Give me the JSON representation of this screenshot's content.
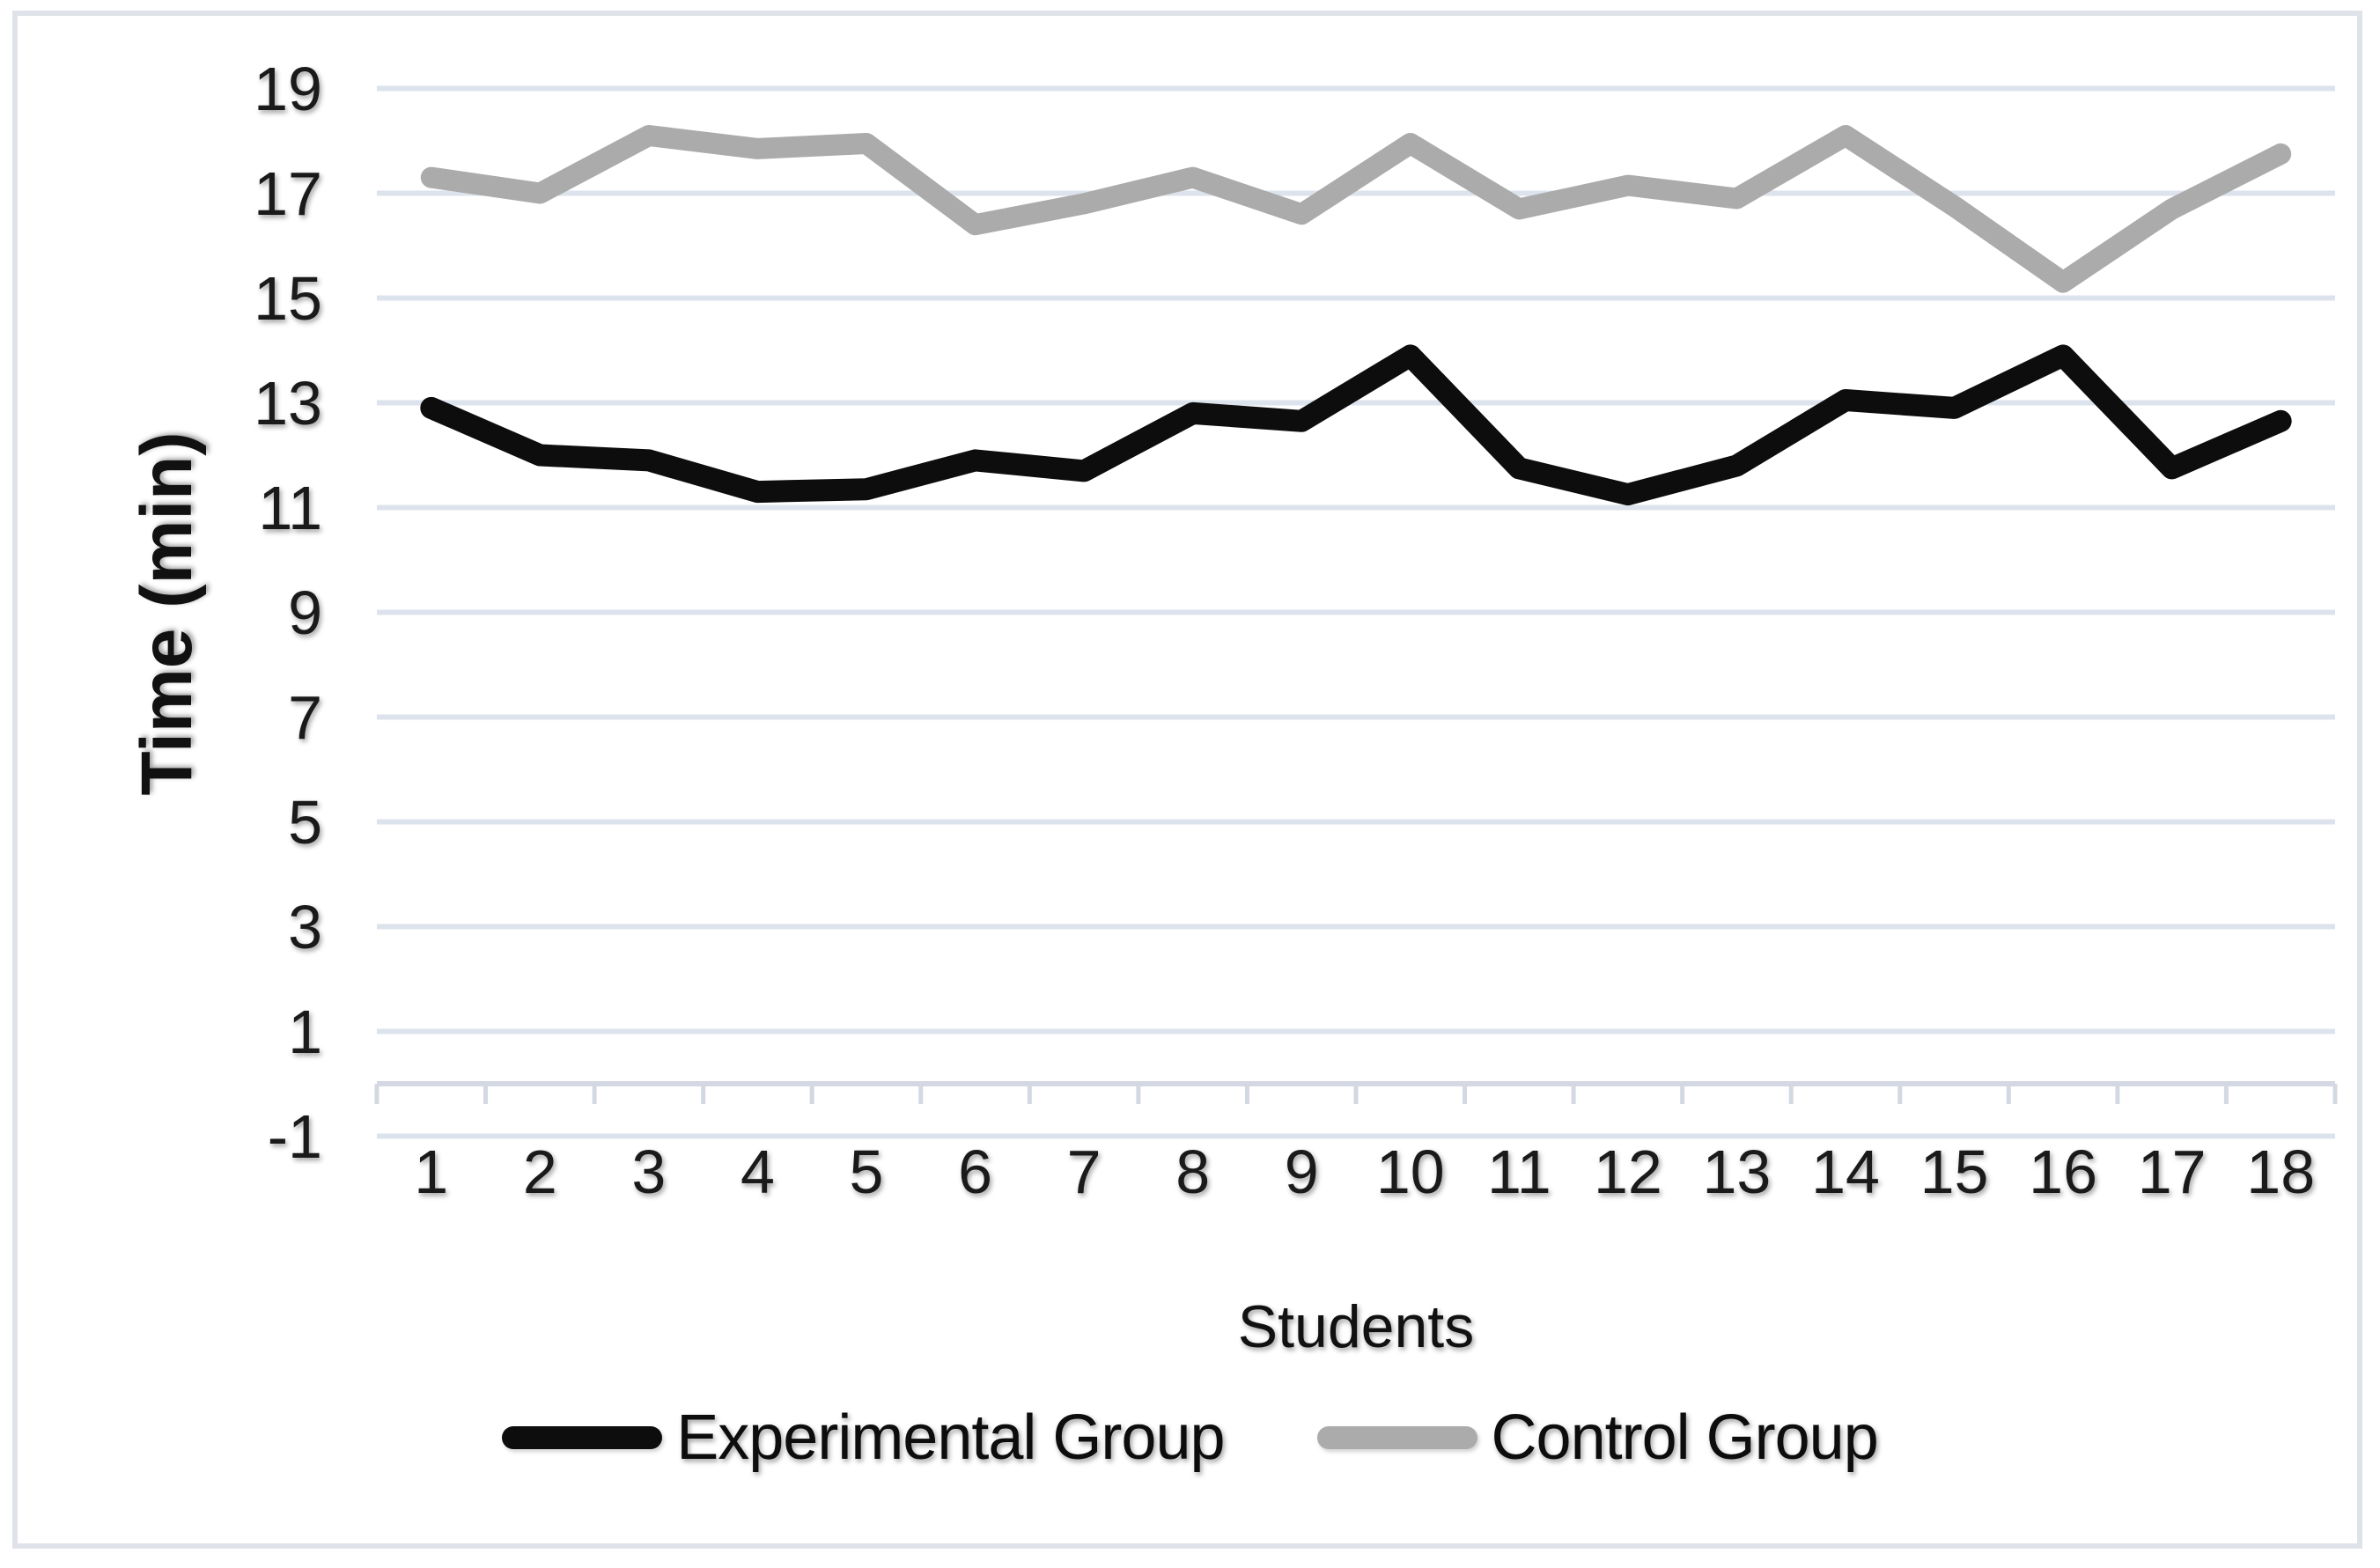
{
  "chart_data": {
    "type": "line",
    "title": "",
    "xlabel": "Students",
    "ylabel": "Time (min)",
    "categories": [
      "1",
      "2",
      "3",
      "4",
      "5",
      "6",
      "7",
      "8",
      "9",
      "10",
      "11",
      "12",
      "13",
      "14",
      "15",
      "16",
      "17",
      "18"
    ],
    "series": [
      {
        "name": "Experimental Group",
        "color": "#0d0d0d",
        "values": [
          12.9,
          12.0,
          11.9,
          11.3,
          11.35,
          11.9,
          11.7,
          12.8,
          12.65,
          13.9,
          11.75,
          11.25,
          11.8,
          13.05,
          12.9,
          13.9,
          11.75,
          12.65
        ]
      },
      {
        "name": "Control Group",
        "color": "#ababab",
        "values": [
          17.3,
          17.0,
          18.1,
          17.85,
          17.95,
          16.4,
          16.8,
          17.3,
          16.6,
          17.95,
          16.7,
          17.15,
          16.9,
          18.1,
          16.75,
          15.3,
          16.7,
          17.75
        ]
      }
    ],
    "ylim": [
      -1,
      19
    ],
    "yticks": [
      19,
      17,
      15,
      13,
      11,
      9,
      7,
      5,
      3,
      1,
      -1
    ],
    "grid": true,
    "grid_color": "#dde3ec",
    "axis_color": "#d3d8e2",
    "legend_position": "bottom",
    "background": "#ffffff",
    "border_color": "#dfe3e9",
    "text_color": "#1a1a1a"
  }
}
